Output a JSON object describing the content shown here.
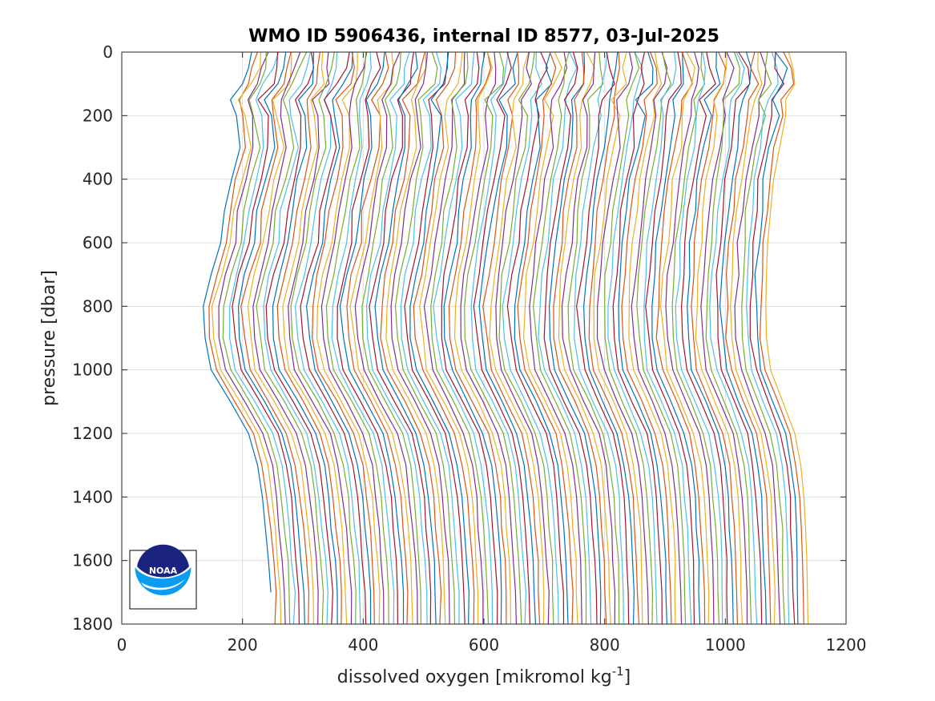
{
  "chart_data": {
    "type": "line",
    "title": "WMO ID 5906436, internal ID 8577, 03-Jul-2025",
    "xlabel": "dissolved oxygen [mikromol kg",
    "xlabel_sup": "-1",
    "xlabel_end": "]",
    "ylabel": "pressure [dbar]",
    "xlim": [
      0,
      1200
    ],
    "ylim": [
      0,
      1800
    ],
    "y_reversed": true,
    "grid": true,
    "xticks": [
      0,
      200,
      400,
      600,
      800,
      1000,
      1200
    ],
    "yticks": [
      0,
      200,
      400,
      600,
      800,
      1000,
      1200,
      1400,
      1600,
      1800
    ],
    "series_count": 115,
    "profile_pressures": [
      0,
      50,
      100,
      150,
      200,
      300,
      400,
      500,
      600,
      700,
      800,
      900,
      1000,
      1100,
      1200,
      1300,
      1400,
      1500,
      1600,
      1700,
      1800
    ],
    "first_profile": {
      "pressure": [
        0,
        50,
        100,
        150,
        200,
        300,
        400,
        500,
        600,
        700,
        800,
        900,
        1000,
        1100,
        1200,
        1300,
        1400,
        1500,
        1600,
        1700
      ],
      "oxygen": [
        215,
        210,
        200,
        180,
        190,
        196,
        182,
        170,
        164,
        148,
        135,
        138,
        148,
        180,
        210,
        225,
        233,
        238,
        243,
        247
      ]
    },
    "last_profile": {
      "pressure": [
        0,
        50,
        100,
        150,
        200,
        300,
        400,
        500,
        600,
        700,
        800,
        900,
        1000,
        1100,
        1200,
        1300,
        1400,
        1500,
        1600,
        1700,
        1800
      ],
      "oxygen": [
        1105,
        1112,
        1115,
        1100,
        1100,
        1090,
        1080,
        1075,
        1070,
        1068,
        1067,
        1068,
        1075,
        1095,
        1115,
        1125,
        1130,
        1133,
        1135,
        1136,
        1137
      ]
    },
    "palette": [
      "#0072bd",
      "#d95319",
      "#edb120",
      "#7e2f8e",
      "#77ac30",
      "#4dbeee",
      "#a2142f"
    ]
  },
  "logo": {
    "text": "NOAA",
    "colors": {
      "navy": "#1a237e",
      "blue": "#0a9cf0",
      "white": "#ffffff"
    }
  }
}
